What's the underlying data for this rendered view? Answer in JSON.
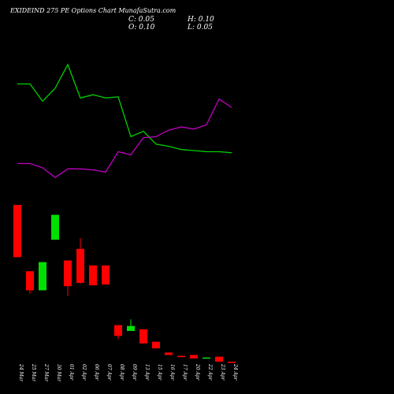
{
  "header": {
    "title": "EXIDEIND 275 PE Options  Chart MunafaSutra.com",
    "close_label": "C: 0.05",
    "open_label": "O: 0.10",
    "high_label": "H: 0.10",
    "low_label": "L: 0.05"
  },
  "chart_data": {
    "type": "candlestick",
    "title": "EXIDEIND 275 PE Options  Chart MunafaSutra.com",
    "categories": [
      "24 Mar",
      "25 Mar",
      "27 Mar",
      "30 Mar",
      "01 Apr",
      "02 Apr",
      "06 Apr",
      "07 Apr",
      "08 Apr",
      "09 Apr",
      "13 Apr",
      "15 Apr",
      "16 Apr",
      "17 Apr",
      "20 Apr",
      "22 Apr",
      "23 Apr",
      "24 Apr"
    ],
    "candles": [
      {
        "open": 19.0,
        "high": 19.0,
        "low": 12.7,
        "close": 12.7
      },
      {
        "open": 11.0,
        "high": 11.0,
        "low": 8.3,
        "close": 8.7
      },
      {
        "open": 8.7,
        "high": 12.1,
        "low": 8.7,
        "close": 12.1
      },
      {
        "open": 14.8,
        "high": 17.8,
        "low": 14.8,
        "close": 17.8
      },
      {
        "open": 12.3,
        "high": 12.3,
        "low": 8.0,
        "close": 9.2
      },
      {
        "open": 13.7,
        "high": 15.0,
        "low": 9.5,
        "close": 9.6
      },
      {
        "open": 11.7,
        "high": 11.7,
        "low": 9.3,
        "close": 9.3
      },
      {
        "open": 11.7,
        "high": 11.7,
        "low": 9.4,
        "close": 9.4
      },
      {
        "open": 4.5,
        "high": 4.5,
        "low": 2.8,
        "close": 3.2
      },
      {
        "open": 3.8,
        "high": 5.2,
        "low": 3.8,
        "close": 4.4
      },
      {
        "open": 4.0,
        "high": 4.0,
        "low": 2.3,
        "close": 2.3
      },
      {
        "open": 2.5,
        "high": 2.5,
        "low": 1.7,
        "close": 1.7
      },
      {
        "open": 1.2,
        "high": 1.2,
        "low": 0.9,
        "close": 0.9
      },
      {
        "open": 0.8,
        "high": 0.8,
        "low": 0.65,
        "close": 0.65
      },
      {
        "open": 0.9,
        "high": 0.9,
        "low": 0.5,
        "close": 0.5
      },
      {
        "open": 0.55,
        "high": 0.6,
        "low": 0.55,
        "close": 0.6
      },
      {
        "open": 0.7,
        "high": 0.7,
        "low": 0.1,
        "close": 0.1
      },
      {
        "open": 0.1,
        "high": 0.1,
        "low": 0.05,
        "close": 0.05
      }
    ],
    "series": [
      {
        "values": [
          9.2,
          9.2,
          7.6,
          8.8,
          11.0,
          7.9,
          8.2,
          7.9,
          8.0,
          4.3,
          4.8,
          3.6,
          3.4,
          3.1,
          3.0,
          2.9,
          2.9,
          2.8
        ],
        "color": "#00d000"
      },
      {
        "values": [
          1.8,
          1.8,
          1.4,
          0.5,
          1.3,
          1.3,
          1.2,
          1.0,
          2.9,
          2.6,
          4.2,
          4.3,
          4.9,
          5.2,
          5.0,
          5.4,
          7.8,
          7.0
        ],
        "color": "#c000c0"
      }
    ],
    "colors": {
      "up": "#00e000",
      "down": "#ff0000",
      "background": "#000000"
    }
  }
}
